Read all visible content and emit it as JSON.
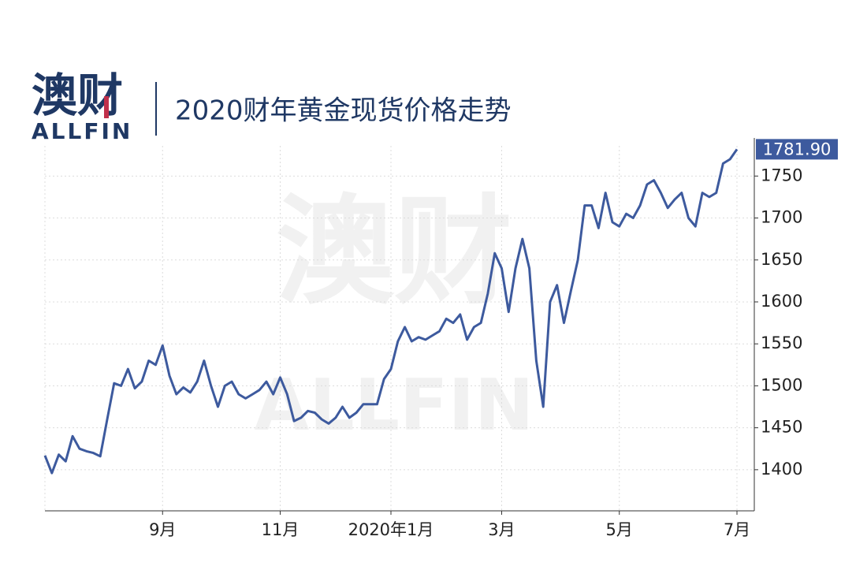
{
  "logo": {
    "cn": "澳财",
    "en": "ALLFIN"
  },
  "chart_data": {
    "type": "line",
    "title": "2020财年黄金现货价格走势",
    "categories": [
      null,
      null,
      null,
      null,
      null,
      null,
      null,
      null,
      null,
      null,
      null,
      null,
      null,
      null,
      null,
      null,
      null,
      "9月",
      null,
      null,
      null,
      null,
      null,
      null,
      null,
      null,
      null,
      null,
      null,
      null,
      null,
      null,
      null,
      null,
      "11月",
      null,
      null,
      null,
      null,
      null,
      null,
      null,
      null,
      null,
      null,
      null,
      null,
      null,
      null,
      null,
      "2020年1月",
      null,
      null,
      null,
      null,
      null,
      null,
      null,
      null,
      null,
      null,
      null,
      null,
      null,
      null,
      null,
      "3月",
      null,
      null,
      null,
      null,
      null,
      null,
      null,
      null,
      null,
      null,
      null,
      null,
      null,
      null,
      null,
      null,
      "5月",
      null,
      null,
      null,
      null,
      null,
      null,
      null,
      null,
      null,
      null,
      null,
      null,
      null,
      null,
      null,
      null,
      "7月"
    ],
    "series": [
      {
        "color": "#3d5a9e",
        "values": [
          1417,
          1396,
          1418,
          1410,
          1440,
          1425,
          1422,
          1420,
          1416,
          1460,
          1503,
          1500,
          1520,
          1497,
          1505,
          1530,
          1525,
          1548,
          1512,
          1490,
          1498,
          1492,
          1505,
          1530,
          1500,
          1475,
          1500,
          1505,
          1490,
          1485,
          1490,
          1495,
          1505,
          1490,
          1510,
          1490,
          1458,
          1462,
          1470,
          1468,
          1460,
          1455,
          1462,
          1475,
          1462,
          1468,
          1478,
          1478,
          1478,
          1508,
          1520,
          1553,
          1570,
          1553,
          1558,
          1555,
          1560,
          1565,
          1580,
          1575,
          1585,
          1555,
          1570,
          1575,
          1610,
          1658,
          1640,
          1588,
          1640,
          1675,
          1640,
          1530,
          1475,
          1600,
          1620,
          1575,
          1613,
          1650,
          1715,
          1715,
          1688,
          1730,
          1695,
          1690,
          1705,
          1700,
          1715,
          1740,
          1745,
          1730,
          1712,
          1722,
          1730,
          1700,
          1690,
          1730,
          1725,
          1730,
          1765,
          1770,
          1781.9
        ],
        "value_labels": [
          null,
          null,
          null,
          null,
          null,
          null,
          null,
          null,
          null,
          null,
          null,
          null,
          null,
          null,
          null,
          null,
          null,
          null,
          null,
          null,
          null,
          null,
          null,
          null,
          null,
          null,
          null,
          null,
          null,
          null,
          null,
          null,
          null,
          null,
          null,
          null,
          null,
          null,
          null,
          null,
          null,
          null,
          null,
          null,
          null,
          null,
          null,
          null,
          null,
          null,
          null,
          null,
          null,
          null,
          null,
          null,
          null,
          null,
          null,
          null,
          null,
          null,
          null,
          null,
          null,
          null,
          null,
          null,
          null,
          null,
          null,
          null,
          null,
          null,
          null,
          null,
          null,
          null,
          null,
          null,
          null,
          null,
          null,
          null,
          null,
          null,
          null,
          null,
          null,
          null,
          null,
          null,
          null,
          null,
          null,
          null,
          null,
          null,
          null,
          null,
          "1781.90"
        ]
      }
    ],
    "ylim": [
      1351,
      1786
    ],
    "yticks": [
      1400,
      1450,
      1500,
      1550,
      1600,
      1650,
      1700,
      1750
    ],
    "grid": true
  }
}
